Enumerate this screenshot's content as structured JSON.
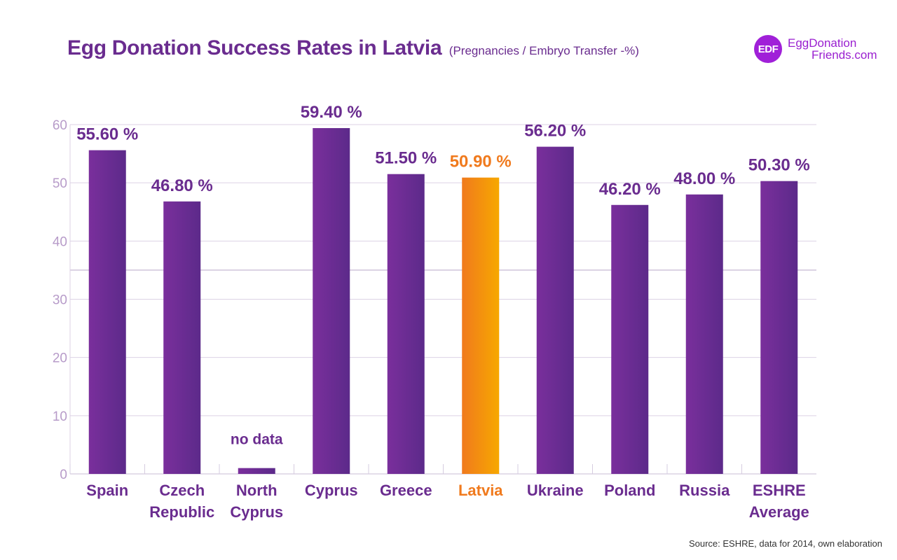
{
  "title": "Egg Donation Success Rates in Latvia",
  "subtitle": "(Pregnancies / Embryo Transfer -%)",
  "logo": {
    "mark": "EDF",
    "line1": "EggDonation",
    "line2": "Friends.com"
  },
  "source": "Source: ESHRE, data for 2014, own elaboration",
  "colors": {
    "purple": "#6a2c8f",
    "bar_purple_dark": "#5c2a8a",
    "bar_purple_light": "#7a2f9c",
    "orange": "#f07a1d",
    "orange_light": "#f7a800",
    "grid": "#dcd2e4",
    "tick": "#b79bc9",
    "logo_purple": "#a020d8"
  },
  "chart_data": {
    "type": "bar",
    "title": "Egg Donation Success Rates in Latvia",
    "subtitle": "(Pregnancies / Embryo Transfer -%)",
    "xlabel": "",
    "ylabel": "",
    "ylim": [
      0,
      60
    ],
    "yticks": [
      "0",
      "10",
      "20",
      "30",
      "40",
      "50",
      "60"
    ],
    "categories": [
      [
        "Spain"
      ],
      [
        "Czech",
        "Republic"
      ],
      [
        "North",
        "Cyprus"
      ],
      [
        "Cyprus"
      ],
      [
        "Greece"
      ],
      [
        "Latvia"
      ],
      [
        "Ukraine"
      ],
      [
        "Poland"
      ],
      [
        "Russia"
      ],
      [
        "ESHRE",
        "Average"
      ]
    ],
    "values": [
      55.6,
      46.8,
      1.0,
      59.4,
      51.5,
      50.9,
      56.2,
      46.2,
      48.0,
      50.3
    ],
    "labels": [
      "55.60 %",
      "46.80 %",
      "no data",
      "59.40 %",
      "51.50 %",
      "50.90 %",
      "56.20 %",
      "46.20 %",
      "48.00 %",
      "50.30 %"
    ],
    "highlight": [
      "Latvia"
    ],
    "grid": true,
    "legend": "none"
  }
}
